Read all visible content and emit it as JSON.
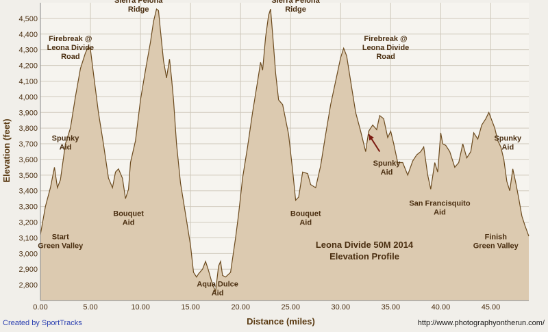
{
  "chart_data": {
    "type": "area",
    "title": "Leona Divide 50M 2014",
    "subtitle": "Elevation Profile",
    "xlabel": "Distance (miles)",
    "ylabel": "Elevation (feet)",
    "xlim": [
      0,
      48.8
    ],
    "ylim": [
      2700,
      4600
    ],
    "xticks": [
      0,
      5,
      10,
      15,
      20,
      25,
      30,
      35,
      40,
      45
    ],
    "xtick_labels": [
      "0.00",
      "5.00",
      "10.00",
      "15.00",
      "20.00",
      "25.00",
      "30.00",
      "35.00",
      "40.00",
      "45.00"
    ],
    "yticks": [
      2800,
      2900,
      3000,
      3100,
      3200,
      3300,
      3400,
      3500,
      3600,
      3700,
      3800,
      3900,
      4000,
      4100,
      4200,
      4300,
      4400,
      4500
    ],
    "ytick_labels": [
      "2,800",
      "2,900",
      "3,000",
      "3,100",
      "3,200",
      "3,300",
      "3,400",
      "3,500",
      "3,600",
      "3,700",
      "3,800",
      "3,900",
      "4,000",
      "4,100",
      "4,200",
      "4,300",
      "4,400",
      "4,500"
    ],
    "grid": true,
    "series": [
      {
        "x": [
          0,
          0.5,
          1.0,
          1.4,
          1.7,
          2.0,
          2.5,
          3.0,
          3.5,
          4.0,
          4.5,
          4.8,
          5.0,
          5.3,
          5.8,
          6.3,
          6.8,
          7.2,
          7.5,
          7.8,
          8.2,
          8.5,
          8.8,
          9.0,
          9.5,
          10.0,
          10.5,
          11.0,
          11.3,
          11.6,
          11.8,
          12.0,
          12.3,
          12.6,
          12.9,
          13.1,
          13.3,
          13.6,
          14.0,
          14.5,
          15.0,
          15.3,
          15.6,
          15.8,
          16.2,
          16.5,
          16.8,
          17.2,
          17.5,
          17.8,
          18.0,
          18.2,
          18.5,
          19.0,
          19.5,
          19.8,
          20.2,
          20.7,
          21.2,
          21.7,
          22.0,
          22.2,
          22.5,
          22.8,
          23.0,
          23.2,
          23.5,
          23.8,
          24.2,
          24.8,
          25.2,
          25.5,
          25.8,
          26.2,
          26.7,
          27.0,
          27.5,
          28.0,
          28.5,
          29.0,
          29.5,
          30.0,
          30.3,
          30.6,
          31.0,
          31.5,
          32.0,
          32.5,
          32.8,
          33.2,
          33.6,
          33.9,
          34.3,
          34.7,
          35.0,
          35.3,
          35.7,
          36.2,
          36.7,
          37.2,
          37.6,
          38.0,
          38.3,
          38.7,
          39.0,
          39.4,
          39.7,
          40.0,
          40.2,
          40.5,
          40.9,
          41.4,
          41.8,
          42.2,
          42.6,
          43.0,
          43.3,
          43.7,
          44.1,
          44.5,
          44.8,
          45.1,
          45.4,
          45.7,
          46.0,
          46.3,
          46.6,
          46.9,
          47.2,
          47.5,
          47.8,
          48.1,
          48.4,
          48.8
        ],
        "y": [
          3120,
          3300,
          3420,
          3550,
          3420,
          3470,
          3700,
          3800,
          4000,
          4180,
          4280,
          4320,
          4300,
          4150,
          3900,
          3700,
          3480,
          3420,
          3520,
          3540,
          3480,
          3350,
          3410,
          3580,
          3720,
          3980,
          4170,
          4350,
          4480,
          4560,
          4550,
          4420,
          4230,
          4120,
          4240,
          4120,
          3980,
          3700,
          3450,
          3250,
          3050,
          2880,
          2850,
          2870,
          2900,
          2950,
          2890,
          2800,
          2760,
          2920,
          2950,
          2860,
          2850,
          2880,
          3100,
          3250,
          3480,
          3680,
          3900,
          4100,
          4220,
          4170,
          4380,
          4520,
          4560,
          4400,
          4150,
          3980,
          3950,
          3760,
          3530,
          3340,
          3360,
          3520,
          3510,
          3440,
          3420,
          3560,
          3760,
          3950,
          4100,
          4250,
          4310,
          4260,
          4100,
          3900,
          3780,
          3650,
          3780,
          3820,
          3790,
          3880,
          3860,
          3740,
          3780,
          3700,
          3580,
          3580,
          3500,
          3590,
          3630,
          3650,
          3680,
          3500,
          3410,
          3580,
          3520,
          3770,
          3700,
          3690,
          3650,
          3550,
          3580,
          3700,
          3610,
          3650,
          3770,
          3730,
          3820,
          3860,
          3900,
          3850,
          3800,
          3720,
          3680,
          3600,
          3460,
          3400,
          3540,
          3450,
          3350,
          3240,
          3180,
          3110
        ]
      }
    ],
    "annotations": [
      {
        "x": 2.5,
        "y": 3720,
        "lines": [
          "Spunky",
          "Aid"
        ]
      },
      {
        "x": 2.0,
        "y": 3090,
        "lines": [
          "Start",
          "Green Valley"
        ]
      },
      {
        "x": 3.0,
        "y": 4355,
        "lines": [
          "Firebreak @",
          "Leona Divide",
          "Road"
        ]
      },
      {
        "x": 8.8,
        "y": 3240,
        "lines": [
          "Bouquet",
          "Aid"
        ]
      },
      {
        "x": 9.8,
        "y": 4600,
        "lines": [
          "Sierra Pelona",
          "Ridge"
        ]
      },
      {
        "x": 17.7,
        "y": 2790,
        "lines": [
          "Aqua Dulce",
          "Aid"
        ]
      },
      {
        "x": 25.5,
        "y": 4600,
        "lines": [
          "Sierra Pelona",
          "Ridge"
        ]
      },
      {
        "x": 26.5,
        "y": 3240,
        "lines": [
          "Bouquet",
          "Aid"
        ]
      },
      {
        "x": 34.5,
        "y": 4355,
        "lines": [
          "Firebreak @",
          "Leona Divide",
          "Road"
        ]
      },
      {
        "x": 34.6,
        "y": 3560,
        "lines": [
          "Spunky",
          "Aid"
        ]
      },
      {
        "x": 39.9,
        "y": 3305,
        "lines": [
          "San Francisquito",
          "Aid"
        ]
      },
      {
        "x": 46.7,
        "y": 3720,
        "lines": [
          "Spunky",
          "Aid"
        ]
      },
      {
        "x": 45.5,
        "y": 3090,
        "lines": [
          "Finish",
          "Green Valley"
        ]
      }
    ],
    "arrow": {
      "from": [
        33.9,
        3650
      ],
      "to": [
        32.8,
        3760
      ]
    }
  },
  "footer": {
    "left": "Created by SportTracks",
    "right": "http://www.photographyontherun.com/"
  },
  "colors": {
    "fill": "#dccab0",
    "line": "#6b4a1e",
    "grid": "#cfc8bb",
    "text": "#4a2e10",
    "arrow": "#7a1a10"
  }
}
